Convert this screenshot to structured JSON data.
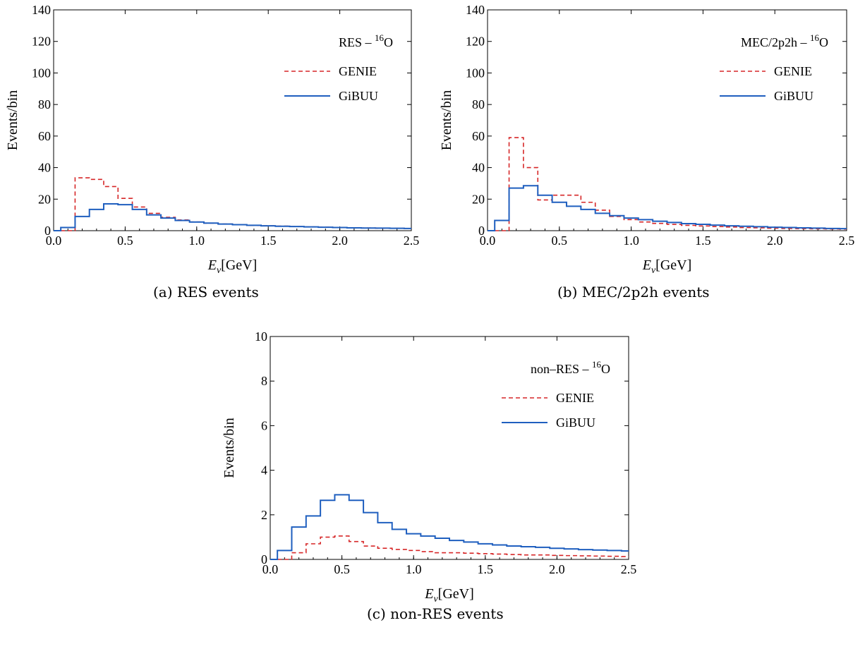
{
  "chart_data": [
    {
      "type": "line",
      "step": true,
      "panel": "a",
      "caption": "(a) RES events",
      "annotation": {
        "prefix": "RES – ",
        "sup": "16",
        "element": "O"
      },
      "xlabel": {
        "main": "E",
        "sub": "ν",
        "unit": "[GeV]"
      },
      "ylabel": "Events/bin",
      "xlim": [
        0,
        2.5
      ],
      "ylim": [
        0,
        140
      ],
      "xticks": [
        "0.0",
        "0.5",
        "1.0",
        "1.5",
        "2.0",
        "2.5"
      ],
      "yticks": [
        "0",
        "20",
        "40",
        "60",
        "80",
        "100",
        "120",
        "140"
      ],
      "legend_position": "top-right",
      "bin_edges": [
        0,
        0.05,
        0.15,
        0.25,
        0.35,
        0.45,
        0.55,
        0.65,
        0.75,
        0.85,
        0.95,
        1.05,
        1.15,
        1.25,
        1.35,
        1.45,
        1.55,
        1.65,
        1.75,
        1.85,
        1.95,
        2.05,
        2.15,
        2.25,
        2.35,
        2.45,
        2.5
      ],
      "series": [
        {
          "name": "GENIE",
          "style": "dashed",
          "color": "#d62728",
          "values": [
            0,
            0,
            33.5,
            32.5,
            28,
            20.5,
            15,
            11,
            8.5,
            6.8,
            5.5,
            4.8,
            4.2,
            3.8,
            3.4,
            3.1,
            2.9,
            2.6,
            2.4,
            2.2,
            2.0,
            1.9,
            1.7,
            1.6,
            1.5,
            1.4
          ]
        },
        {
          "name": "GiBUU",
          "style": "solid",
          "color": "#1f5fbf",
          "values": [
            0,
            2,
            9,
            13.5,
            17,
            16.5,
            13.5,
            10,
            8,
            6.5,
            5.5,
            4.8,
            4.2,
            3.8,
            3.4,
            3.1,
            2.8,
            2.6,
            2.4,
            2.2,
            2.0,
            1.8,
            1.7,
            1.6,
            1.5,
            1.4
          ]
        }
      ]
    },
    {
      "type": "line",
      "step": true,
      "panel": "b",
      "caption": "(b) MEC/2p2h events",
      "annotation": {
        "prefix": "MEC/2p2h – ",
        "sup": "16",
        "element": "O"
      },
      "xlabel": {
        "main": "E",
        "sub": "ν",
        "unit": "[GeV]"
      },
      "ylabel": "Events/bin",
      "xlim": [
        0,
        2.5
      ],
      "ylim": [
        0,
        140
      ],
      "xticks": [
        "0.0",
        "0.5",
        "1.0",
        "1.5",
        "2.0",
        "2.5"
      ],
      "yticks": [
        "0",
        "20",
        "40",
        "60",
        "80",
        "100",
        "120",
        "140"
      ],
      "legend_position": "top-right",
      "bin_edges": [
        0,
        0.05,
        0.15,
        0.25,
        0.35,
        0.45,
        0.55,
        0.65,
        0.75,
        0.85,
        0.95,
        1.05,
        1.15,
        1.25,
        1.35,
        1.45,
        1.55,
        1.65,
        1.75,
        1.85,
        1.95,
        2.05,
        2.15,
        2.25,
        2.35,
        2.45,
        2.5
      ],
      "series": [
        {
          "name": "GENIE",
          "style": "dashed",
          "color": "#d62728",
          "values": [
            0,
            0,
            59,
            40,
            19.5,
            22.5,
            22.5,
            18,
            13,
            9,
            7,
            5.5,
            4.6,
            4,
            3.4,
            3,
            2.6,
            2.3,
            2,
            1.8,
            1.6,
            1.4,
            1.3,
            1.2,
            1.1,
            1
          ]
        },
        {
          "name": "GiBUU",
          "style": "solid",
          "color": "#1f5fbf",
          "values": [
            0,
            6.5,
            27,
            28.5,
            22.5,
            18,
            15.5,
            13.5,
            11,
            9.5,
            8,
            7,
            6,
            5.2,
            4.5,
            4,
            3.5,
            3.1,
            2.8,
            2.5,
            2.2,
            2,
            1.8,
            1.6,
            1.4,
            1.3
          ]
        }
      ]
    },
    {
      "type": "line",
      "step": true,
      "panel": "c",
      "caption": "(c) non-RES events",
      "annotation": {
        "prefix": "non–RES – ",
        "sup": "16",
        "element": "O"
      },
      "xlabel": {
        "main": "E",
        "sub": "ν",
        "unit": "[GeV]"
      },
      "ylabel": "Events/bin",
      "xlim": [
        0,
        2.5
      ],
      "ylim": [
        0,
        10
      ],
      "xticks": [
        "0.0",
        "0.5",
        "1.0",
        "1.5",
        "2.0",
        "2.5"
      ],
      "yticks": [
        "0",
        "2",
        "4",
        "6",
        "8",
        "10"
      ],
      "legend_position": "top-right",
      "bin_edges": [
        0,
        0.05,
        0.15,
        0.25,
        0.35,
        0.45,
        0.55,
        0.65,
        0.75,
        0.85,
        0.95,
        1.05,
        1.15,
        1.25,
        1.35,
        1.45,
        1.55,
        1.65,
        1.75,
        1.85,
        1.95,
        2.05,
        2.15,
        2.25,
        2.35,
        2.45,
        2.5
      ],
      "series": [
        {
          "name": "GENIE",
          "style": "dashed",
          "color": "#d62728",
          "values": [
            0,
            0,
            0.3,
            0.7,
            1.0,
            1.05,
            0.8,
            0.6,
            0.5,
            0.45,
            0.4,
            0.35,
            0.3,
            0.3,
            0.28,
            0.26,
            0.24,
            0.22,
            0.2,
            0.2,
            0.18,
            0.17,
            0.16,
            0.15,
            0.14,
            0.13
          ]
        },
        {
          "name": "GiBUU",
          "style": "solid",
          "color": "#1f5fbf",
          "values": [
            0,
            0.4,
            1.45,
            1.95,
            2.65,
            2.9,
            2.65,
            2.1,
            1.65,
            1.35,
            1.15,
            1.05,
            0.95,
            0.85,
            0.78,
            0.7,
            0.65,
            0.6,
            0.57,
            0.54,
            0.5,
            0.47,
            0.44,
            0.42,
            0.4,
            0.38
          ]
        }
      ]
    }
  ]
}
